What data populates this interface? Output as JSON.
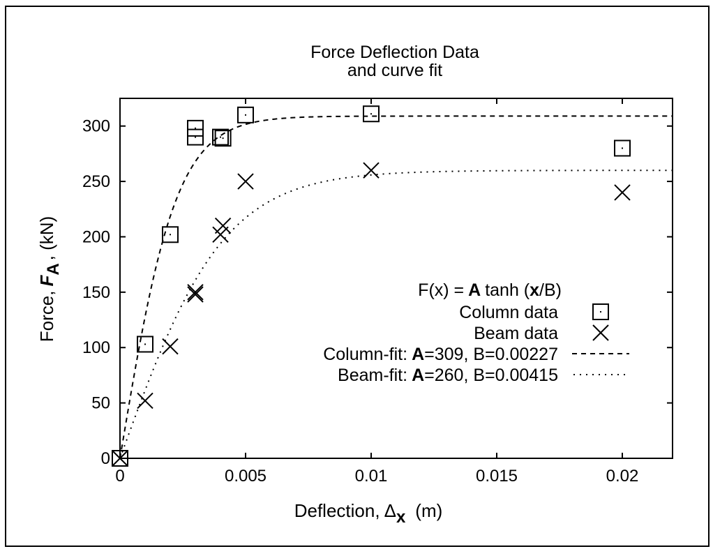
{
  "chart_data": {
    "type": "scatter",
    "title": [
      "Force Deflection Data",
      "and curve fit"
    ],
    "xlabel": {
      "prefix": "Deflection,",
      "symbol": "Δ",
      "sub": "x",
      "unit": "(m)"
    },
    "ylabel": {
      "prefix": "Force,",
      "symbol": "F",
      "sub": "A",
      "unit": ", (kN)"
    },
    "xlim": [
      0,
      0.022
    ],
    "ylim": [
      0,
      325
    ],
    "xticks": [
      0,
      0.005,
      0.01,
      0.015,
      0.02
    ],
    "xtick_labels": [
      "0",
      "0.005",
      "0.01",
      "0.015",
      "0.02"
    ],
    "yticks": [
      0,
      50,
      100,
      150,
      200,
      250,
      300
    ],
    "ytick_labels": [
      "0",
      "50",
      "100",
      "150",
      "200",
      "250",
      "300"
    ],
    "legend_placement": "center-right",
    "legend_formula": {
      "lhs": "F(x) =",
      "A": "A",
      "mid": "tanh (",
      "x": "x",
      "rhs": "/B)"
    },
    "series": [
      {
        "name": "Column data",
        "marker": "square",
        "points": [
          [
            0,
            0
          ],
          [
            0.001,
            103
          ],
          [
            0.002,
            202
          ],
          [
            0.003,
            290
          ],
          [
            0.003,
            298
          ],
          [
            0.004,
            290
          ],
          [
            0.0041,
            289
          ],
          [
            0.005,
            310
          ],
          [
            0.01,
            311
          ],
          [
            0.02,
            280
          ]
        ]
      },
      {
        "name": "Beam data",
        "marker": "cross",
        "points": [
          [
            0,
            0
          ],
          [
            0.001,
            52
          ],
          [
            0.002,
            101
          ],
          [
            0.003,
            148
          ],
          [
            0.003,
            150
          ],
          [
            0.004,
            202
          ],
          [
            0.0041,
            210
          ],
          [
            0.005,
            250
          ],
          [
            0.01,
            260
          ],
          [
            0.02,
            240
          ]
        ]
      }
    ],
    "fits": [
      {
        "name": "Column-fit:",
        "A_label": "A",
        "A_text": "=309, B=0.00227",
        "A": 309,
        "B": 0.00227,
        "dash": "dashed"
      },
      {
        "name": "Beam-fit:",
        "A_label": "A",
        "A_text": "=260, B=0.00415",
        "A": 260,
        "B": 0.00415,
        "dash": "dotted"
      }
    ]
  }
}
